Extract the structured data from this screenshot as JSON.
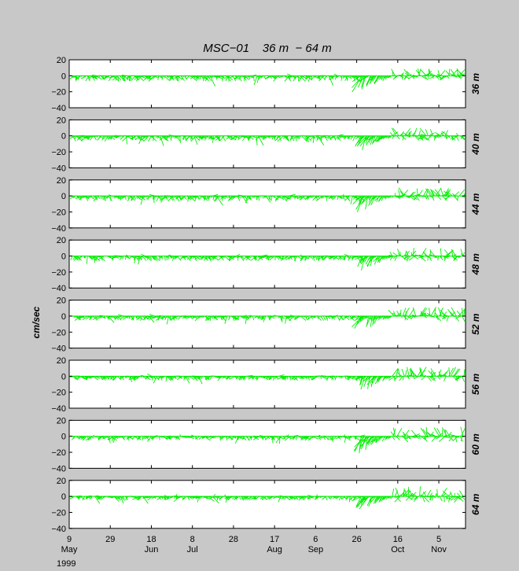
{
  "chart_data": {
    "type": "line",
    "title": "MSC−01    36 m  − 64 m",
    "ylabel": "cm/sec",
    "ylim": [
      -40,
      20
    ],
    "yticks": [
      "20",
      "0",
      "−20",
      "−40"
    ],
    "xlim": [
      "1999-05-09",
      "1999-11-18"
    ],
    "year_label": "1999",
    "xticks": [
      {
        "date": "1999-05-09",
        "day": "9",
        "month": "May"
      },
      {
        "date": "1999-05-29",
        "day": "29",
        "month": ""
      },
      {
        "date": "1999-06-18",
        "day": "18",
        "month": "Jun"
      },
      {
        "date": "1999-07-08",
        "day": "8",
        "month": "Jul"
      },
      {
        "date": "1999-07-28",
        "day": "28",
        "month": ""
      },
      {
        "date": "1999-08-17",
        "day": "17",
        "month": "Aug"
      },
      {
        "date": "1999-09-06",
        "day": "6",
        "month": "Sep"
      },
      {
        "date": "1999-09-26",
        "day": "26",
        "month": ""
      },
      {
        "date": "1999-10-16",
        "day": "16",
        "month": "Oct"
      },
      {
        "date": "1999-11-05",
        "day": "5",
        "month": "Nov"
      }
    ],
    "line_color": "#00ee00",
    "grid": false,
    "panels": [
      {
        "depth": "36 m",
        "quiet": 0.55
      },
      {
        "depth": "40 m",
        "quiet": 0.5
      },
      {
        "depth": "44 m",
        "quiet": 0.45
      },
      {
        "depth": "48 m",
        "quiet": 0.4
      },
      {
        "depth": "52 m",
        "quiet": 0.32
      },
      {
        "depth": "56 m",
        "quiet": 0.26
      },
      {
        "depth": "60 m",
        "quiet": 0.22
      },
      {
        "depth": "64 m",
        "quiet": 0.18
      }
    ]
  }
}
